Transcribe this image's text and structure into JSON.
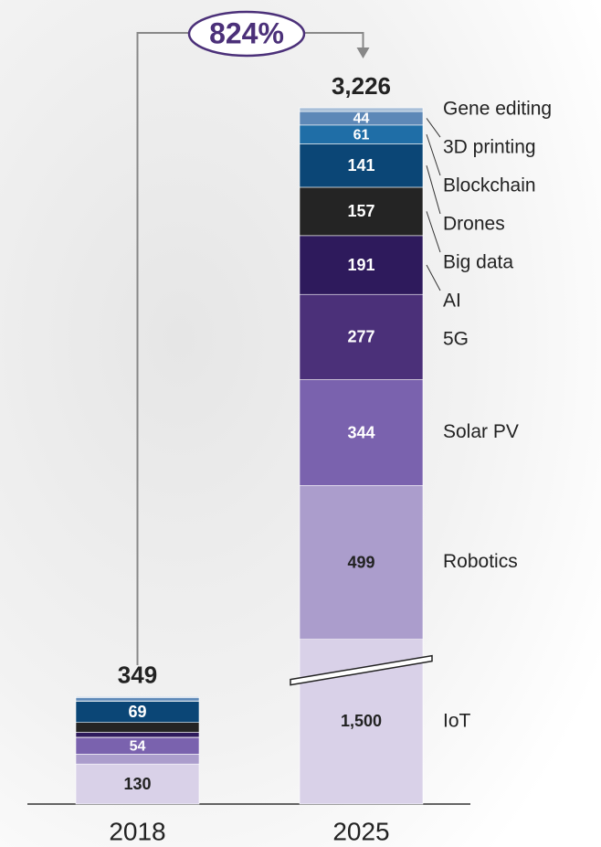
{
  "chart_data": {
    "type": "stacked_bar",
    "categories": [
      "2018",
      "2025"
    ],
    "totals": [
      {
        "value": 349,
        "label": "349"
      },
      {
        "value": 3226,
        "label": "3,226"
      }
    ],
    "growth": {
      "value": 824,
      "label": "824%"
    },
    "series": [
      {
        "name": "IoT",
        "color": "#d9d1e8",
        "values": [
          130,
          1500
        ],
        "value_labels": [
          "130",
          "1,500"
        ]
      },
      {
        "name": "Robotics",
        "color": "#ab9dcc",
        "values": [
          32,
          499
        ],
        "value_labels": [
          null,
          "499"
        ]
      },
      {
        "name": "Solar PV",
        "color": "#7a62ae",
        "values": [
          54,
          344
        ],
        "value_labels": [
          "54",
          "344"
        ]
      },
      {
        "name": "5G",
        "color": "#4b3079",
        "values": [
          1,
          277
        ],
        "value_labels": [
          null,
          "277"
        ]
      },
      {
        "name": "AI",
        "color": "#2e1a5c",
        "values": [
          16,
          191
        ],
        "value_labels": [
          null,
          "191"
        ]
      },
      {
        "name": "Big data",
        "color": "#242424",
        "values": [
          32,
          157
        ],
        "value_labels": [
          null,
          "157"
        ]
      },
      {
        "name": "Drones",
        "color": "#0b4676",
        "values": [
          69,
          141
        ],
        "value_labels": [
          "69",
          "141"
        ]
      },
      {
        "name": "Blockchain",
        "color": "#1f6ea7",
        "values": [
          1,
          61
        ],
        "value_labels": [
          null,
          "61"
        ]
      },
      {
        "name": "3D printing",
        "color": "#5d88b7",
        "values": [
          10,
          44
        ],
        "value_labels": [
          null,
          "44"
        ]
      },
      {
        "name": "Gene editing",
        "color": "#a9bfd8",
        "values": [
          4,
          12
        ],
        "value_labels": [
          null,
          null
        ]
      }
    ]
  }
}
